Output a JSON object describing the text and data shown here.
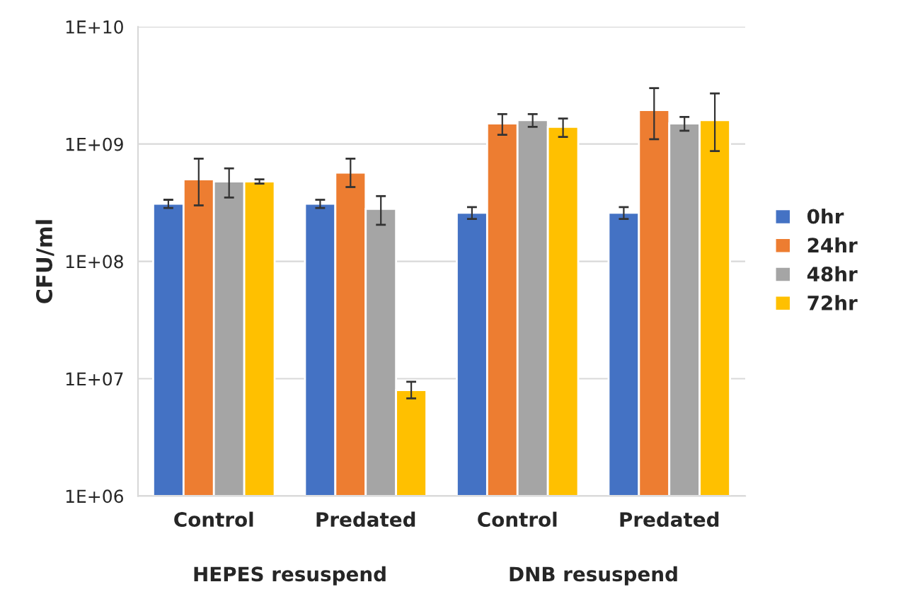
{
  "chart_data": {
    "type": "bar",
    "ylabel": "CFU/ml",
    "categories": [
      "Control",
      "Predated",
      "Control",
      "Predated"
    ],
    "series": [
      {
        "name": "0hr",
        "color": "#4472c4",
        "values": [
          310000000.0,
          310000000.0,
          260000000.0,
          260000000.0
        ],
        "errors": [
          [
            285000000.0,
            335000000.0
          ],
          [
            285000000.0,
            335000000.0
          ],
          [
            230000000.0,
            290000000.0
          ],
          [
            230000000.0,
            290000000.0
          ]
        ]
      },
      {
        "name": "24hr",
        "color": "#ed7d31",
        "values": [
          500000000.0,
          570000000.0,
          1500000000.0,
          1950000000.0
        ],
        "errors": [
          [
            300000000.0,
            750000000.0
          ],
          [
            430000000.0,
            750000000.0
          ],
          [
            1200000000.0,
            1800000000.0
          ],
          [
            1100000000.0,
            3000000000.0
          ]
        ]
      },
      {
        "name": "48hr",
        "color": "#a5a5a5",
        "values": [
          480000000.0,
          280000000.0,
          1600000000.0,
          1500000000.0
        ],
        "errors": [
          [
            350000000.0,
            620000000.0
          ],
          [
            205000000.0,
            360000000.0
          ],
          [
            1400000000.0,
            1800000000.0
          ],
          [
            1300000000.0,
            1700000000.0
          ]
        ]
      },
      {
        "name": "72hr",
        "color": "#ffc000",
        "values": [
          480000000.0,
          8000000.0,
          1400000000.0,
          1600000000.0
        ],
        "errors": [
          [
            460000000.0,
            500000000.0
          ],
          [
            6800000.0,
            9400000.0
          ],
          [
            1150000000.0,
            1650000000.0
          ],
          [
            870000000.0,
            2700000000.0
          ]
        ]
      }
    ],
    "log": true,
    "ylim": [
      1000000.0,
      10000000000.0
    ],
    "yticks": [
      {
        "value": 1000000.0,
        "label": "1E+06"
      },
      {
        "value": 10000000.0,
        "label": "1E+07"
      },
      {
        "value": 100000000.0,
        "label": "1E+08"
      },
      {
        "value": 1000000000.0,
        "label": "1E+09"
      },
      {
        "value": 10000000000.0,
        "label": "1E+10"
      }
    ],
    "grid": "y",
    "legend": "right",
    "annotations": [
      "HEPES resuspend",
      "DNB resuspend"
    ]
  }
}
